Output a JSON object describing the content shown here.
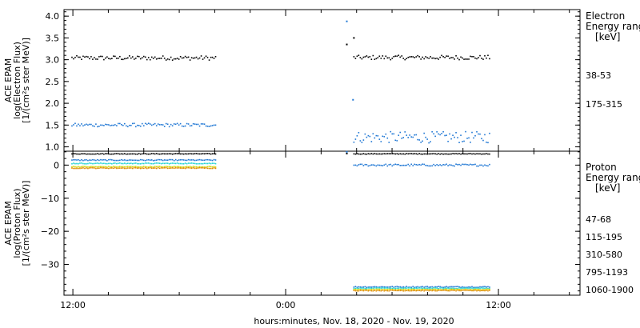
{
  "chart_data": [
    {
      "type": "scatter",
      "panel": "electron",
      "ylabel_lines": [
        "ACE EPAM",
        "log(Electron Flux)",
        "[1/(cm²s ster MeV)]"
      ],
      "yticks": [
        "1.0",
        "1.5",
        "2.0",
        "2.5",
        "3.0",
        "3.5",
        "4.0"
      ],
      "ytick_values": [
        1.0,
        1.5,
        2.0,
        2.5,
        3.0,
        3.5,
        4.0
      ],
      "ylim": [
        0.9,
        4.15
      ],
      "legend_title": [
        "Electron",
        "Energy ranges",
        "[keV]"
      ],
      "series": [
        {
          "name": "38-53",
          "color": "#000000",
          "segments": [
            {
              "x_start": -12.05,
              "x_end": -3.95,
              "mean": 3.04,
              "jitter": 0.05
            },
            {
              "x_start": 3.85,
              "x_end": 11.5,
              "mean": 3.05,
              "jitter": 0.05
            }
          ],
          "extra": [
            [
              3.45,
              3.35
            ],
            [
              3.85,
              3.5
            ]
          ]
        },
        {
          "name": "175-315",
          "color": "#1f77d4",
          "segments": [
            {
              "x_start": -12.05,
              "x_end": -3.95,
              "mean": 1.5,
              "jitter": 0.04
            },
            {
              "x_start": 3.85,
              "x_end": 11.5,
              "mean": 1.22,
              "jitter": 0.13
            }
          ],
          "extra": [
            [
              3.45,
              3.88
            ],
            [
              3.8,
              2.08
            ]
          ]
        }
      ]
    },
    {
      "type": "scatter",
      "panel": "proton",
      "ylabel_lines": [
        "ACE EPAM",
        "log(Proton Flux)",
        "[1/(cm²s ster MeV)]"
      ],
      "yticks": [
        "−30",
        "−20",
        "−10",
        "0"
      ],
      "ytick_values": [
        -30,
        -20,
        -10,
        0
      ],
      "ylim": [
        -39.3,
        4.2
      ],
      "legend_title": [
        "Proton",
        "Energy ranges",
        "[keV]"
      ],
      "series": [
        {
          "name": "47-68",
          "color": "#000000",
          "segments": [
            {
              "x_start": -12.05,
              "x_end": -3.95,
              "mean": 3.4,
              "jitter": 0.1
            },
            {
              "x_start": 3.85,
              "x_end": 11.5,
              "mean": 3.4,
              "jitter": 0.1
            }
          ],
          "extra": [
            [
              3.45,
              3.5
            ]
          ]
        },
        {
          "name": "115-195",
          "color": "#1f77d4",
          "segments": [
            {
              "x_start": -12.05,
              "x_end": -3.95,
              "mean": 1.5,
              "jitter": 0.15
            },
            {
              "x_start": 3.85,
              "x_end": 11.5,
              "mean": 0.0,
              "jitter": 0.3
            },
            {
              "x_start": 3.85,
              "x_end": 11.5,
              "mean": -36.8,
              "jitter": 0.15
            }
          ],
          "extra": [
            [
              3.45,
              4.0
            ]
          ]
        },
        {
          "name": "310-580",
          "color": "#22d3d3",
          "segments": [
            {
              "x_start": -12.05,
              "x_end": -3.95,
              "mean": 0.5,
              "jitter": 0.12
            },
            {
              "x_start": 3.85,
              "x_end": 11.5,
              "mean": -37.2,
              "jitter": 0.12
            }
          ],
          "extra": []
        },
        {
          "name": "795-1193",
          "color": "#d4d400",
          "segments": [
            {
              "x_start": -12.05,
              "x_end": -3.95,
              "mean": -0.5,
              "jitter": 0.12
            },
            {
              "x_start": 3.85,
              "x_end": 11.5,
              "mean": -37.6,
              "jitter": 0.12
            }
          ],
          "extra": []
        },
        {
          "name": "1060-1900",
          "color": "#e08a00",
          "segments": [
            {
              "x_start": -12.05,
              "x_end": -3.95,
              "mean": -0.9,
              "jitter": 0.12
            },
            {
              "x_start": 3.85,
              "x_end": 11.5,
              "mean": -37.9,
              "jitter": 0.12
            }
          ],
          "extra": []
        }
      ]
    }
  ],
  "x_axis": {
    "xlim": [
      -12.5,
      16.6
    ],
    "tick_labels": [
      "12:00",
      "0:00",
      "12:00"
    ],
    "tick_values": [
      -12,
      0,
      12
    ],
    "minor_step": 2,
    "xlabel": "hours:minutes, Nov. 18, 2020 - Nov. 19, 2020"
  }
}
